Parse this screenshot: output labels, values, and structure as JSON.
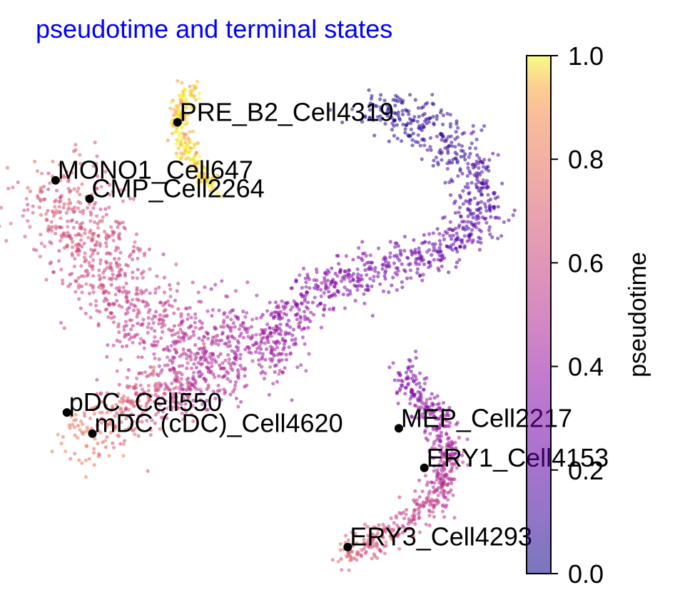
{
  "chart_data": {
    "type": "scatter",
    "title": "pseudotime and terminal states",
    "title_color": "#0000ff",
    "xlabel": "",
    "ylabel": "",
    "axes_visible": false,
    "grid": false,
    "colormap": "plasma",
    "point_alpha": 0.55,
    "colorbar": {
      "label": "pseudotime",
      "range": [
        0.0,
        1.0
      ],
      "ticks": [
        0.0,
        0.2,
        0.4,
        0.6,
        0.8,
        1.0
      ],
      "tick_labels": [
        "0.0",
        "0.2",
        "0.4",
        "0.6",
        "0.8",
        "1.0"
      ],
      "placement": "right"
    },
    "trajectory_branches": [
      {
        "id": "B",
        "pseudotime": [
          0.97,
          0.97
        ],
        "path": [
          [
            3.1,
            6.7
          ],
          [
            3.0,
            6.9
          ],
          [
            2.8,
            7.1
          ],
          [
            2.6,
            7.5
          ],
          [
            2.5,
            7.9
          ],
          [
            2.6,
            8.3
          ],
          [
            2.75,
            8.6
          ]
        ]
      },
      {
        "id": "P",
        "pseudotime": [
          0.02,
          0.42
        ],
        "path": [
          [
            5.9,
            8.1
          ],
          [
            6.4,
            8.1
          ],
          [
            7.0,
            7.8
          ],
          [
            7.6,
            7.2
          ],
          [
            7.9,
            6.5
          ],
          [
            7.7,
            5.9
          ],
          [
            7.1,
            5.4
          ],
          [
            6.3,
            5.15
          ],
          [
            5.5,
            4.95
          ],
          [
            4.8,
            4.6
          ],
          [
            4.3,
            4.0
          ],
          [
            4.1,
            3.5
          ]
        ]
      },
      {
        "id": "M",
        "pseudotime": [
          0.42,
          0.7
        ],
        "path": [
          [
            4.1,
            3.5
          ],
          [
            3.4,
            3.7
          ],
          [
            2.5,
            3.8
          ],
          [
            1.6,
            4.4
          ],
          [
            1.0,
            5.3
          ],
          [
            0.6,
            6.2
          ],
          [
            0.35,
            6.8
          ]
        ]
      },
      {
        "id": "D",
        "pseudotime": [
          0.45,
          0.82
        ],
        "path": [
          [
            3.3,
            3.2
          ],
          [
            2.6,
            2.9
          ],
          [
            1.8,
            2.6
          ],
          [
            1.2,
            2.2
          ],
          [
            0.9,
            1.8
          ]
        ]
      },
      {
        "id": "E",
        "pseudotime": [
          0.3,
          0.72
        ],
        "path": [
          [
            6.5,
            3.2
          ],
          [
            6.6,
            2.9
          ],
          [
            7.0,
            2.4
          ],
          [
            7.3,
            1.6
          ],
          [
            7.1,
            0.8
          ],
          [
            6.5,
            0.3
          ],
          [
            5.8,
            -0.1
          ],
          [
            5.4,
            -0.35
          ]
        ]
      }
    ],
    "terminal_states": [
      {
        "label": "PRE_B2_Cell4319",
        "x": 2.5,
        "y": 7.9
      },
      {
        "label": "MONO1_Cell647",
        "x": 0.35,
        "y": 6.8
      },
      {
        "label": "CMP_Cell2264",
        "x": 0.95,
        "y": 6.45
      },
      {
        "label": "pDC_Cell550",
        "x": 0.55,
        "y": 2.4
      },
      {
        "label": "mDC (cDC)_Cell4620",
        "x": 1.0,
        "y": 2.0
      },
      {
        "label": "MEP_Cell2217",
        "x": 6.4,
        "y": 2.1
      },
      {
        "label": "ERY1_Cell4153",
        "x": 6.85,
        "y": 1.35
      },
      {
        "label": "ERY3_Cell4293",
        "x": 5.5,
        "y": -0.15
      }
    ],
    "xlim": [
      0.0,
      8.3
    ],
    "ylim": [
      -0.6,
      9.0
    ]
  }
}
